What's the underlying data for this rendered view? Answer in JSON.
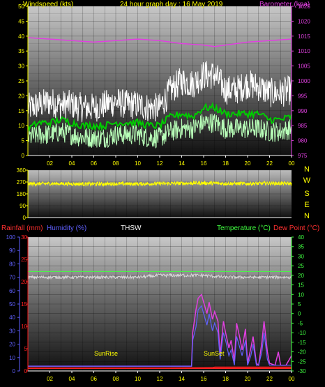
{
  "header": {
    "windspeed_label": "Windspeed (kts)",
    "title": "24 hour graph day : 16 May 2019",
    "barometer_label": "Barometer (kpa)"
  },
  "bottom_header": {
    "rainfall_label": "Rainfall (mm)",
    "humidity_label": "Humidity (%)",
    "thsw_label": "THSW",
    "temperature_label": "Temperature (°C)",
    "dewpoint_label": "Dew Point (°C)"
  },
  "annotations": {
    "sunrise": "SunRise",
    "sunset": "SunSet"
  },
  "compass": [
    "N",
    "W",
    "S",
    "E",
    "N"
  ],
  "colors": {
    "wind_axis": "#ffff00",
    "barometer": "#e040e0",
    "gust": "#ffffff",
    "avg_wind": "#00cc00",
    "min_wind": "#b8ffb8",
    "direction": "#ffff00",
    "rainfall": "#ff2020",
    "humidity": "#6060ff",
    "temperature": "#40ff40",
    "dewpoint": "#ff2020",
    "thsw": "#e040e0"
  },
  "chart_data": [
    {
      "type": "line",
      "name": "wind-barometer",
      "title": "24 hour graph day : 16 May 2019",
      "ylabel": "Windspeed (kts)",
      "y2label": "Barometer (kpa)",
      "xlim": [
        0,
        24
      ],
      "xticks": [
        "02",
        "04",
        "06",
        "08",
        "10",
        "12",
        "14",
        "16",
        "18",
        "20",
        "22",
        "00"
      ],
      "ylim": [
        0,
        50
      ],
      "yticks": [
        0,
        5,
        10,
        15,
        20,
        25,
        30,
        35,
        40,
        45,
        50
      ],
      "y2lim": [
        975,
        1025
      ],
      "y2ticks": [
        975,
        980,
        985,
        990,
        995,
        1000,
        1005,
        1010,
        1015,
        1020,
        1025
      ],
      "grid": true,
      "series": [
        {
          "axis": "y2",
          "x": [
            0,
            2,
            4,
            6,
            8,
            10,
            12,
            14,
            16,
            17,
            18,
            20,
            22,
            24
          ],
          "values": [
            1014.5,
            1014,
            1013.5,
            1013,
            1013.5,
            1014,
            1013.5,
            1012.5,
            1012,
            1011.5,
            1012,
            1013,
            1013.5,
            1014
          ]
        },
        {
          "x": [
            0,
            1,
            2,
            3,
            4,
            5,
            6,
            7,
            8,
            9,
            10,
            11,
            12,
            13,
            14,
            15,
            16,
            17,
            18,
            19,
            20,
            21,
            22,
            23,
            24
          ],
          "values": [
            16,
            17,
            18,
            17,
            17,
            16,
            16,
            17,
            18,
            17,
            17,
            16,
            16,
            22,
            25,
            24,
            27,
            27,
            22,
            22,
            24,
            23,
            21,
            21,
            22
          ]
        },
        {
          "x": [
            0,
            1,
            2,
            3,
            4,
            5,
            6,
            7,
            8,
            9,
            10,
            11,
            12,
            13,
            14,
            15,
            16,
            17,
            18,
            19,
            20,
            21,
            22,
            23,
            24
          ],
          "values": [
            9,
            11,
            11,
            12,
            11,
            10,
            10,
            10,
            11,
            11,
            11,
            10,
            10,
            13,
            14,
            13,
            16,
            16,
            14,
            14,
            14,
            14,
            12,
            12,
            13
          ]
        },
        {
          "x": [
            0,
            1,
            2,
            3,
            4,
            5,
            6,
            7,
            8,
            9,
            10,
            11,
            12,
            13,
            14,
            15,
            16,
            17,
            18,
            19,
            20,
            21,
            22,
            23,
            24
          ],
          "values": [
            6,
            7,
            7,
            8,
            7,
            6,
            6,
            6,
            7,
            7,
            7,
            6,
            6,
            8,
            9,
            9,
            11,
            11,
            9,
            9,
            9,
            9,
            8,
            8,
            9
          ]
        }
      ]
    },
    {
      "type": "line",
      "name": "wind-direction",
      "xlim": [
        0,
        24
      ],
      "ylim": [
        0,
        360
      ],
      "yticks": [
        0,
        90,
        180,
        270,
        360
      ],
      "grid": true,
      "series": [
        {
          "x": [
            0,
            2,
            4,
            6,
            8,
            10,
            12,
            14,
            16,
            18,
            20,
            22,
            24
          ],
          "values": [
            255,
            258,
            256,
            254,
            257,
            255,
            258,
            260,
            262,
            259,
            257,
            260,
            258
          ]
        }
      ]
    },
    {
      "type": "line",
      "name": "temperature-rain-humidity",
      "xlim": [
        0,
        24
      ],
      "xticks": [
        "02",
        "04",
        "06",
        "08",
        "10",
        "12",
        "14",
        "16",
        "18",
        "20",
        "22",
        "00"
      ],
      "ylim": [
        0,
        100
      ],
      "yticks": [
        0,
        10,
        20,
        30,
        40,
        50,
        60,
        70,
        80,
        90,
        100
      ],
      "y_rain_lim": [
        0,
        30
      ],
      "y_rain_ticks": [
        0,
        5,
        10,
        15,
        20,
        25,
        30
      ],
      "y2lim": [
        -30,
        40
      ],
      "y2ticks": [
        -30,
        -25,
        -20,
        -15,
        -10,
        -5,
        0,
        5,
        10,
        15,
        20,
        25,
        30,
        35,
        40
      ],
      "grid": true,
      "series": [
        {
          "axis": "y2",
          "x": [
            0,
            24
          ],
          "values": [
            22,
            22
          ]
        },
        {
          "axis": "y2",
          "x": [
            0,
            2,
            4,
            6,
            8,
            10,
            12,
            14,
            16,
            18,
            20,
            22,
            24
          ],
          "values": [
            19,
            19,
            19,
            19,
            19,
            19,
            20,
            20,
            20,
            19,
            19,
            19,
            19
          ]
        },
        {
          "axis": "y2",
          "x": [
            0,
            12,
            12.5,
            16.8,
            17,
            24
          ],
          "values": [
            -28.5,
            -28.5,
            -28.5,
            -28.3,
            -28,
            -28
          ]
        },
        {
          "axis": "y2",
          "x": [
            0,
            14.9,
            15,
            15.3,
            15.5,
            15.8,
            16,
            16.3,
            16.5,
            16.8,
            17,
            17.3,
            17.5,
            17.8,
            18,
            18.3,
            18.5,
            18.8,
            19,
            19.3,
            19.5,
            19.8,
            20,
            20.3,
            20.5,
            20.8,
            21,
            21.3,
            21.5,
            21.8,
            22,
            22.5,
            22.8,
            23,
            23.5,
            24
          ],
          "values": [
            -27.5,
            -27.5,
            -10,
            2,
            8,
            10,
            6,
            0,
            6,
            -3,
            1,
            -4,
            -22,
            -4,
            -10,
            -18,
            -14,
            -25,
            -5,
            -13,
            -19,
            -8,
            -26,
            -18,
            -12,
            -26,
            -27,
            -15,
            -4,
            -20,
            -26,
            -27,
            -20,
            -27,
            -27,
            -22
          ]
        },
        {
          "axis": "y2",
          "x": [
            0,
            14.9,
            15,
            15.3,
            15.5,
            15.8,
            16,
            16.3,
            16.5,
            16.8,
            17,
            17.3,
            17.5,
            17.8,
            18,
            18.3,
            18.5,
            18.8,
            19,
            19.3,
            19.5,
            19.8,
            20,
            20.3,
            20.5,
            20.8,
            21,
            21.3,
            21.5,
            21.8,
            22,
            22.5,
            23,
            24
          ],
          "values": [
            -27.5,
            -27.5,
            -14,
            -7,
            2,
            4,
            0,
            -6,
            0,
            -9,
            -5,
            -10,
            -24,
            -10,
            -14,
            -22,
            -19,
            -27,
            -12,
            -18,
            -22,
            -14,
            -27,
            -22,
            -16,
            -27,
            -27,
            -20,
            -10,
            -24,
            -27,
            -27,
            -27,
            -27
          ]
        },
        {
          "axis": "y",
          "x": [
            0,
            24
          ],
          "values": [
            2,
            2
          ]
        }
      ]
    }
  ]
}
